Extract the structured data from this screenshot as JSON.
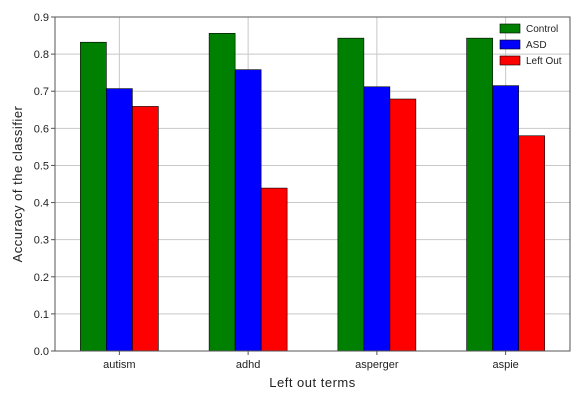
{
  "chart_data": {
    "type": "bar",
    "title": "",
    "xlabel": "Left out terms",
    "ylabel": "Accuracy of the classifier",
    "categories": [
      "autism",
      "adhd",
      "asperger",
      "aspie"
    ],
    "series": [
      {
        "name": "Control",
        "color": "#008000",
        "values": [
          0.832,
          0.856,
          0.843,
          0.843
        ]
      },
      {
        "name": "ASD",
        "color": "#0000ff",
        "values": [
          0.707,
          0.758,
          0.712,
          0.715
        ]
      },
      {
        "name": "Left Out",
        "color": "#ff0000",
        "values": [
          0.659,
          0.439,
          0.679,
          0.58
        ]
      }
    ],
    "ylim": [
      0,
      0.9
    ],
    "yticks": [
      "0.0",
      "0.1",
      "0.2",
      "0.3",
      "0.4",
      "0.5",
      "0.6",
      "0.7",
      "0.8",
      "0.9"
    ],
    "grid": true,
    "legend_position": "top-right"
  }
}
